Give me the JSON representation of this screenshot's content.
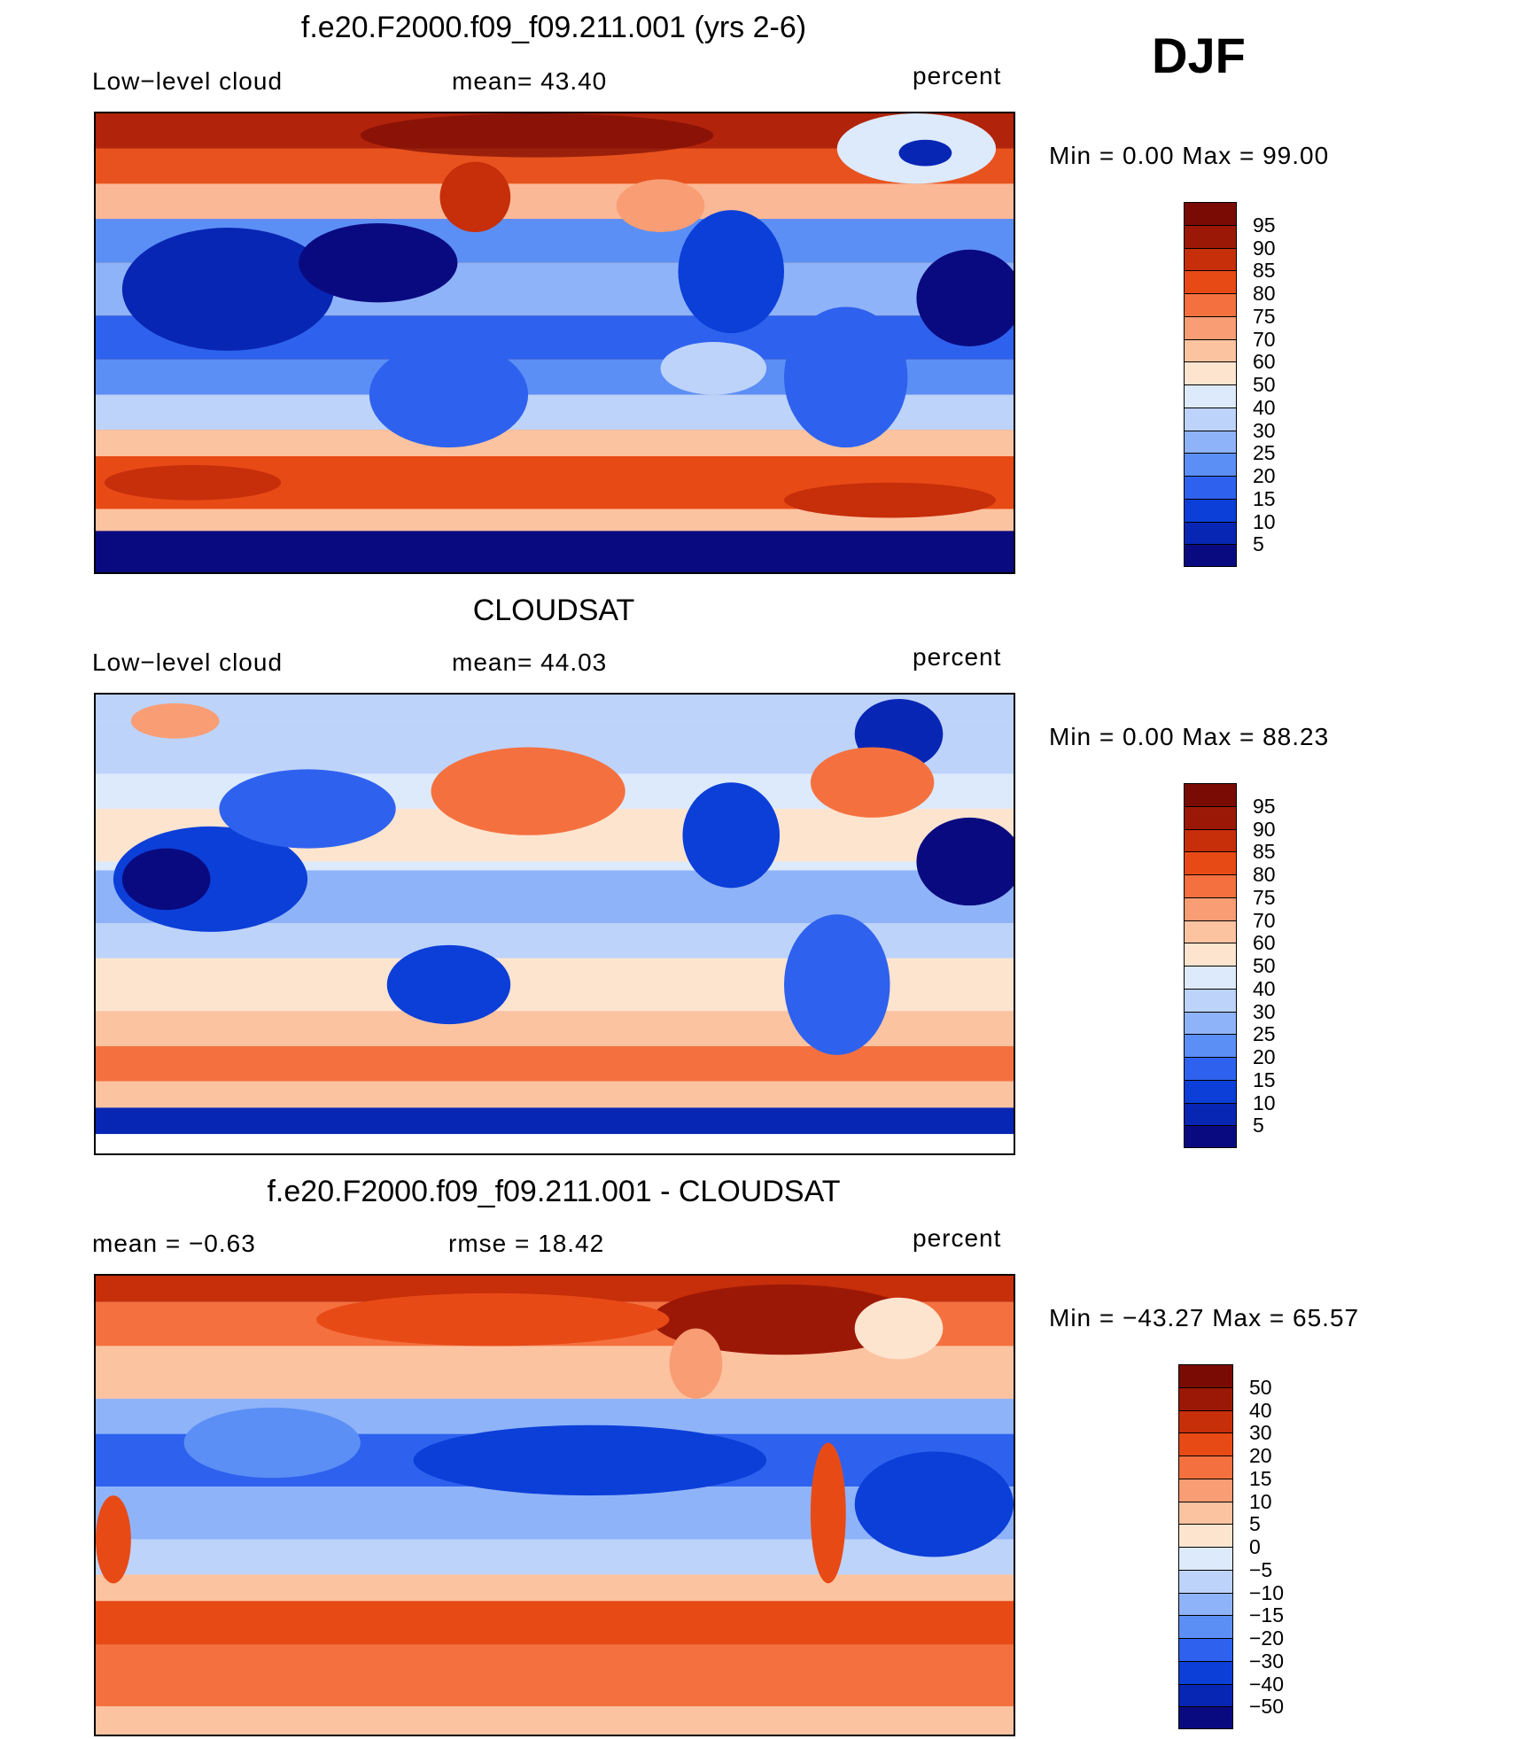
{
  "season": "DJF",
  "panels": [
    {
      "title": "f.e20.F2000.f09_f09.211.001 (yrs 2-6)",
      "left_label": "Low−level cloud",
      "center_label": "mean=   43.40",
      "units": "percent",
      "minmax": "Min =    0.00 Max =   99.00",
      "colorbar": {
        "colors": [
          "#0a0a80",
          "#0826b4",
          "#0c3fd8",
          "#2e62ee",
          "#5c8ff5",
          "#8fb3f8",
          "#bdd3fa",
          "#ddeafc",
          "#fde4cf",
          "#fcc3a1",
          "#f99d74",
          "#f4713f",
          "#e84a16",
          "#c72e0a",
          "#9c1806",
          "#7a0b04"
        ],
        "labels": [
          "95",
          "90",
          "85",
          "80",
          "75",
          "70",
          "60",
          "50",
          "40",
          "30",
          "25",
          "20",
          "15",
          "10",
          "5"
        ]
      }
    },
    {
      "title": "CLOUDSAT",
      "left_label": "Low−level cloud",
      "center_label": "mean=   44.03",
      "units": "percent",
      "minmax": "Min =    0.00 Max =   88.23",
      "colorbar": {
        "colors": [
          "#0a0a80",
          "#0826b4",
          "#0c3fd8",
          "#2e62ee",
          "#5c8ff5",
          "#8fb3f8",
          "#bdd3fa",
          "#ddeafc",
          "#fde4cf",
          "#fcc3a1",
          "#f99d74",
          "#f4713f",
          "#e84a16",
          "#c72e0a",
          "#9c1806",
          "#7a0b04"
        ],
        "labels": [
          "95",
          "90",
          "85",
          "80",
          "75",
          "70",
          "60",
          "50",
          "40",
          "30",
          "25",
          "20",
          "15",
          "10",
          "5"
        ]
      }
    },
    {
      "title": "f.e20.F2000.f09_f09.211.001 - CLOUDSAT",
      "left_label": "mean =   −0.63",
      "center_label": "rmse =    18.42",
      "units": "percent",
      "minmax": "Min = −43.27 Max =   65.57",
      "colorbar": {
        "colors": [
          "#0a0a80",
          "#0826b4",
          "#0c3fd8",
          "#2e62ee",
          "#5c8ff5",
          "#8fb3f8",
          "#bdd3fa",
          "#ddeafc",
          "#fde4cf",
          "#fcc3a1",
          "#f99d74",
          "#f4713f",
          "#e84a16",
          "#c72e0a",
          "#9c1806",
          "#7a0b04"
        ],
        "labels": [
          "50",
          "40",
          "30",
          "20",
          "15",
          "10",
          "5",
          "0",
          "−5",
          "−10",
          "−15",
          "−20",
          "−30",
          "−40",
          "−50"
        ]
      }
    }
  ]
}
